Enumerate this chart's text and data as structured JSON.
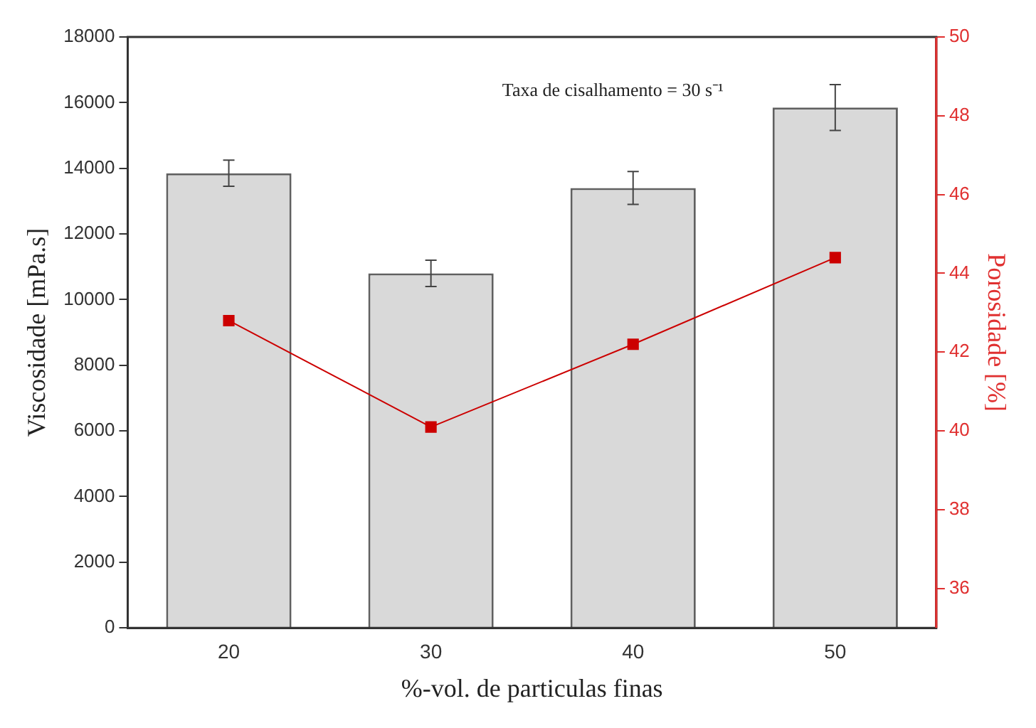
{
  "chart_data": {
    "type": "bar",
    "xlabel": "%-vol. de particulas finas",
    "ylabel": "Viscosidade [mPa.s]",
    "y2label": "Porosidade [%]",
    "categories": [
      "20",
      "30",
      "40",
      "50"
    ],
    "series": [
      {
        "color": "#d9d9d9",
        "values": [
          13850,
          10800,
          13400,
          15850
        ],
        "errors": [
          400,
          400,
          500,
          700
        ]
      },
      {
        "type": "line",
        "axis": "y2",
        "color": "#cc0000",
        "values": [
          42.8,
          40.1,
          42.2,
          44.4
        ]
      }
    ],
    "ylim": [
      0,
      18000
    ],
    "yticks": [
      0,
      2000,
      4000,
      6000,
      8000,
      10000,
      12000,
      14000,
      16000,
      18000
    ],
    "y2lim": [
      35,
      50
    ],
    "y2ticks": [
      36,
      38,
      40,
      42,
      44,
      46,
      48,
      50
    ],
    "marker": "square",
    "line_style": "solid",
    "grid": false,
    "legend": false,
    "annotations": [
      "Taxa de cisalhamento = 30 s⁻¹"
    ]
  }
}
